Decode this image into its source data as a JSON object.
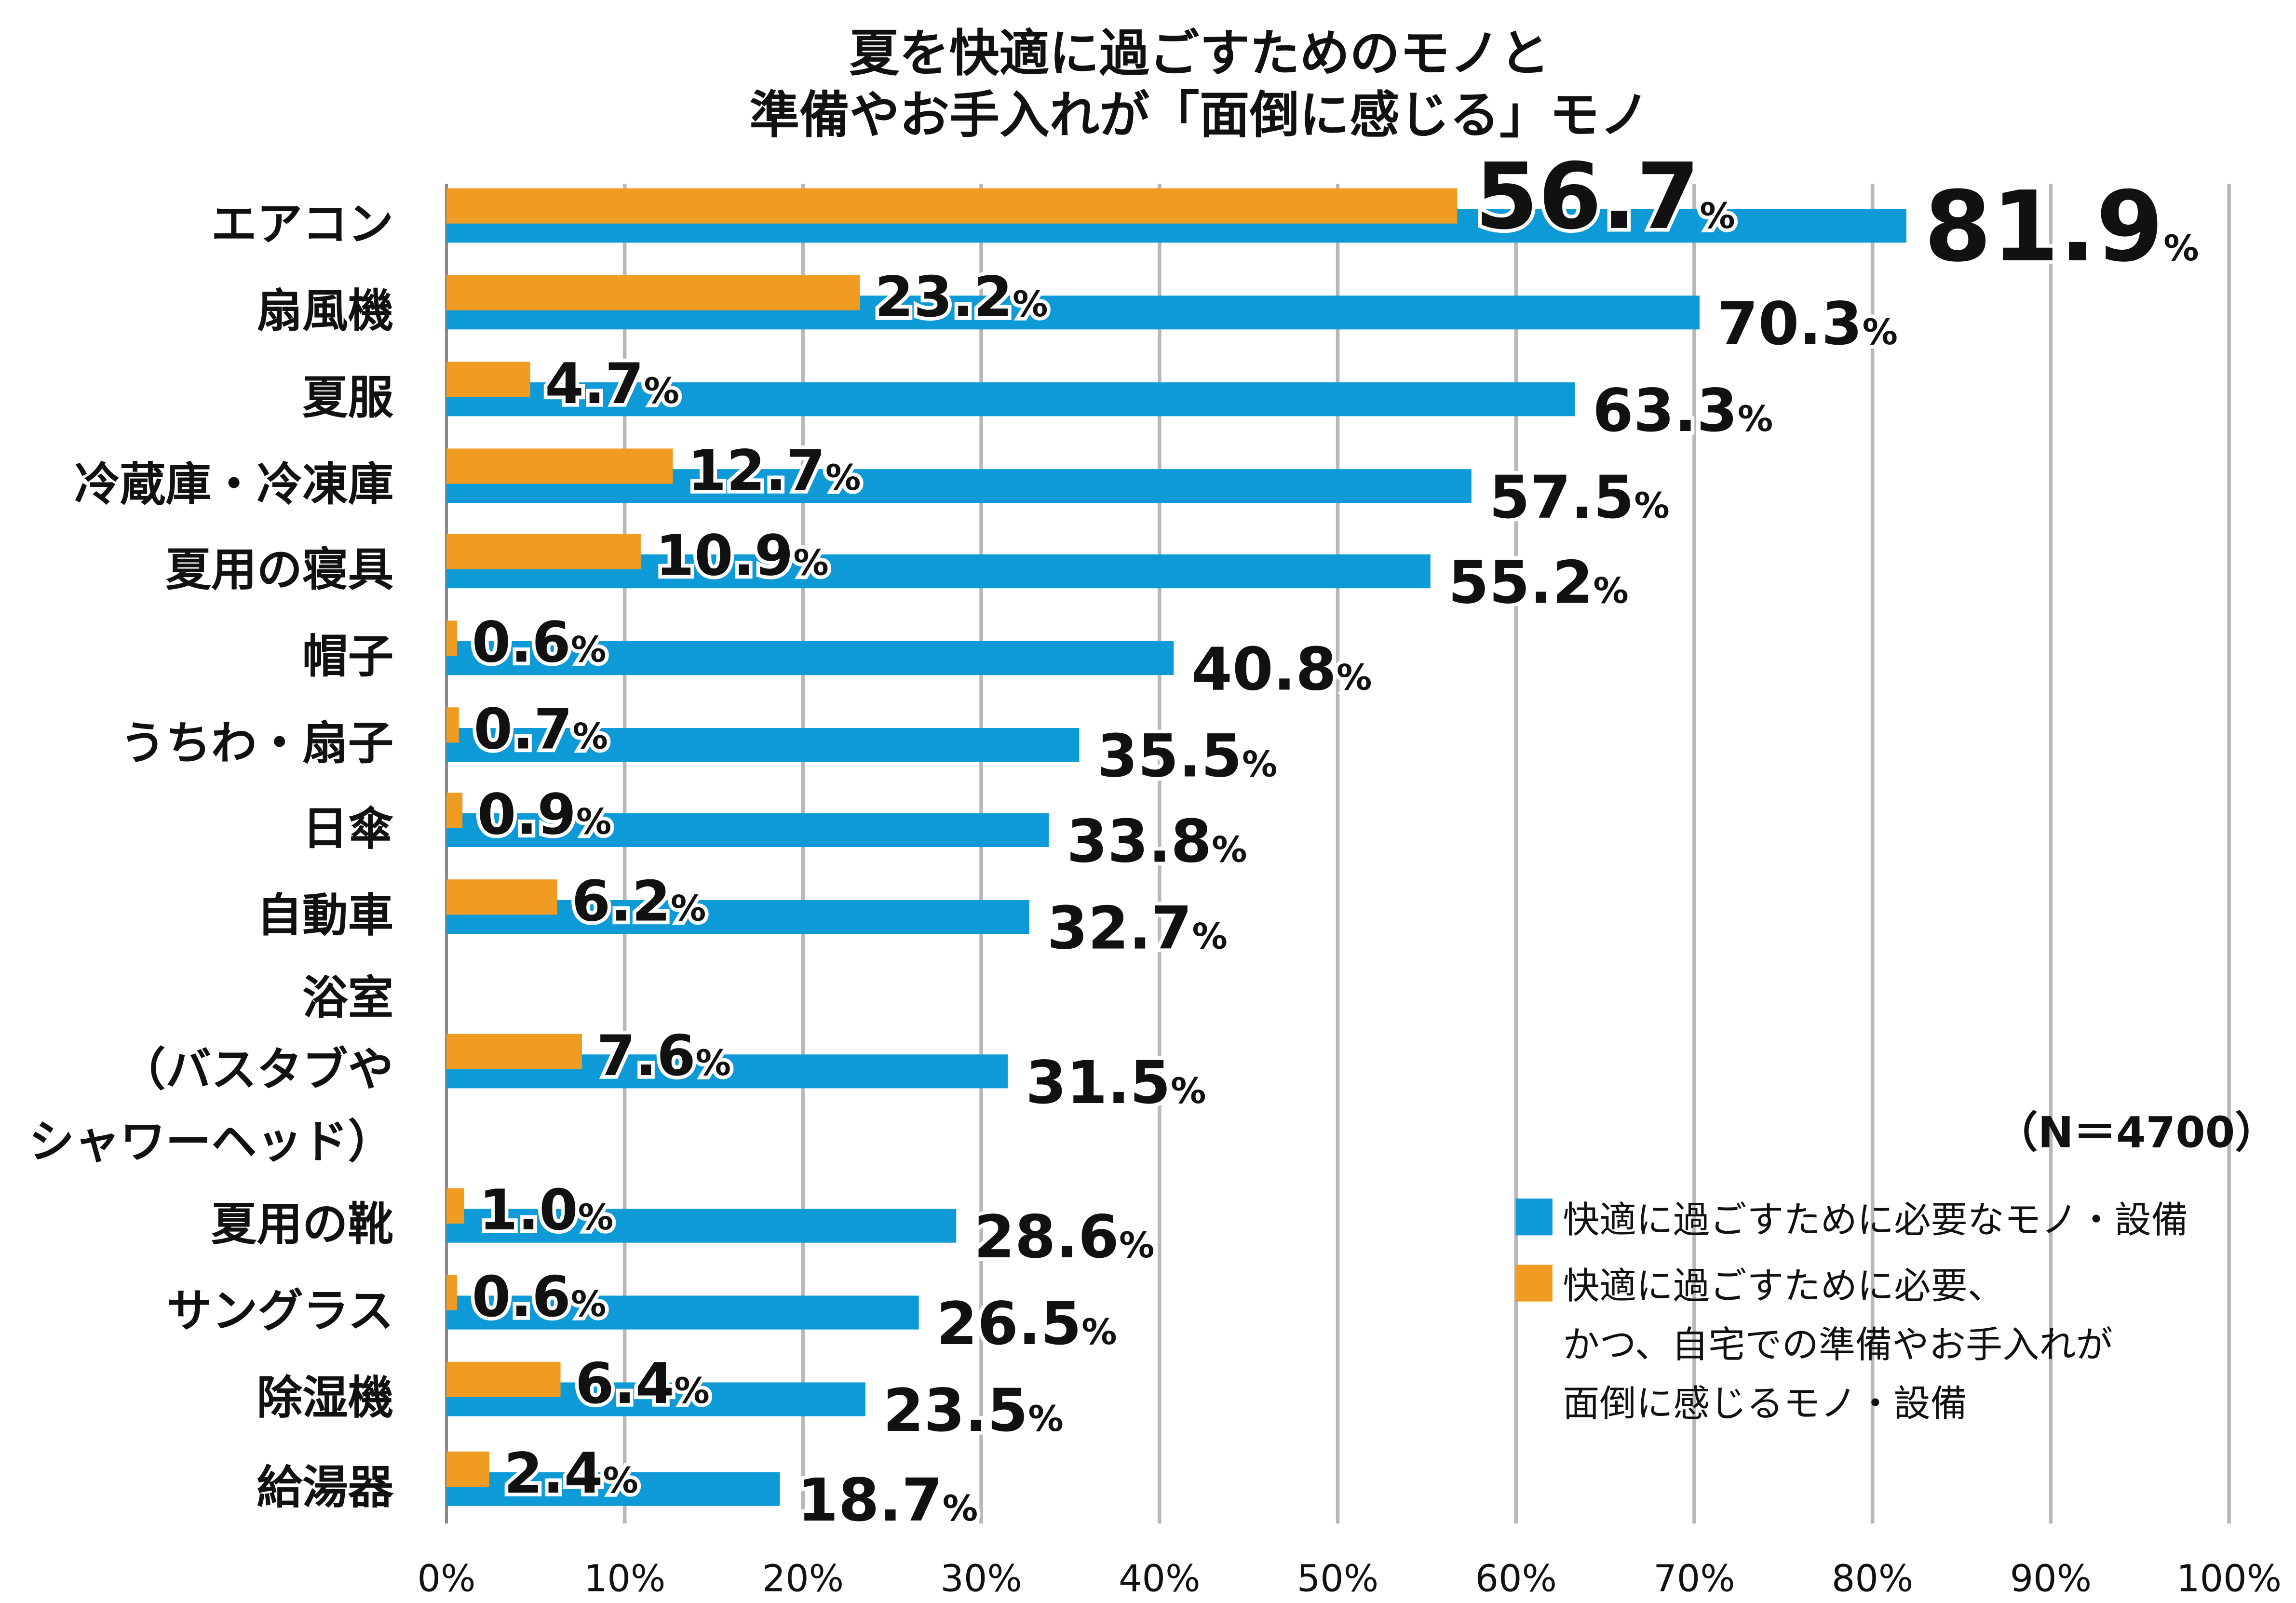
{
  "chart_data": {
    "type": "bar",
    "orientation": "horizontal",
    "title": [
      "夏を快適に過ごすためのモノと",
      "準備やお手入れが「面倒に感じる」モノ"
    ],
    "categories": [
      "エアコン",
      "扇風機",
      "夏服",
      "冷蔵庫・冷凍庫",
      "夏用の寝具",
      "帽子",
      "うちわ・扇子",
      "日傘",
      "自動車",
      [
        "浴室",
        "（バスタブや",
        "シャワーヘッド）"
      ],
      "夏用の靴",
      "サングラス",
      "除湿機",
      "給湯器"
    ],
    "series": [
      {
        "name": "快適に過ごすために必要なモノ・設備",
        "color": "#0e9ad7",
        "values": [
          81.9,
          70.3,
          63.3,
          57.5,
          55.2,
          40.8,
          35.5,
          33.8,
          32.7,
          31.5,
          28.6,
          26.5,
          23.5,
          18.7
        ]
      },
      {
        "name": [
          "快適に過ごすために必要、",
          "かつ、自宅での準備やお手入れが",
          "面倒に感じるモノ・設備"
        ],
        "color": "#f09c22",
        "values": [
          56.7,
          23.2,
          4.7,
          12.7,
          10.9,
          0.6,
          0.7,
          0.9,
          6.2,
          7.6,
          1.0,
          0.6,
          6.4,
          2.4
        ]
      }
    ],
    "xlim": [
      0,
      100
    ],
    "xticks": [
      "0%",
      "10%",
      "20%",
      "30%",
      "40%",
      "50%",
      "60%",
      "70%",
      "80%",
      "90%",
      "100%"
    ],
    "value_suffix": "%",
    "grid": "vertical",
    "legend": "bottom-right",
    "annotation": "（N＝4700）"
  }
}
